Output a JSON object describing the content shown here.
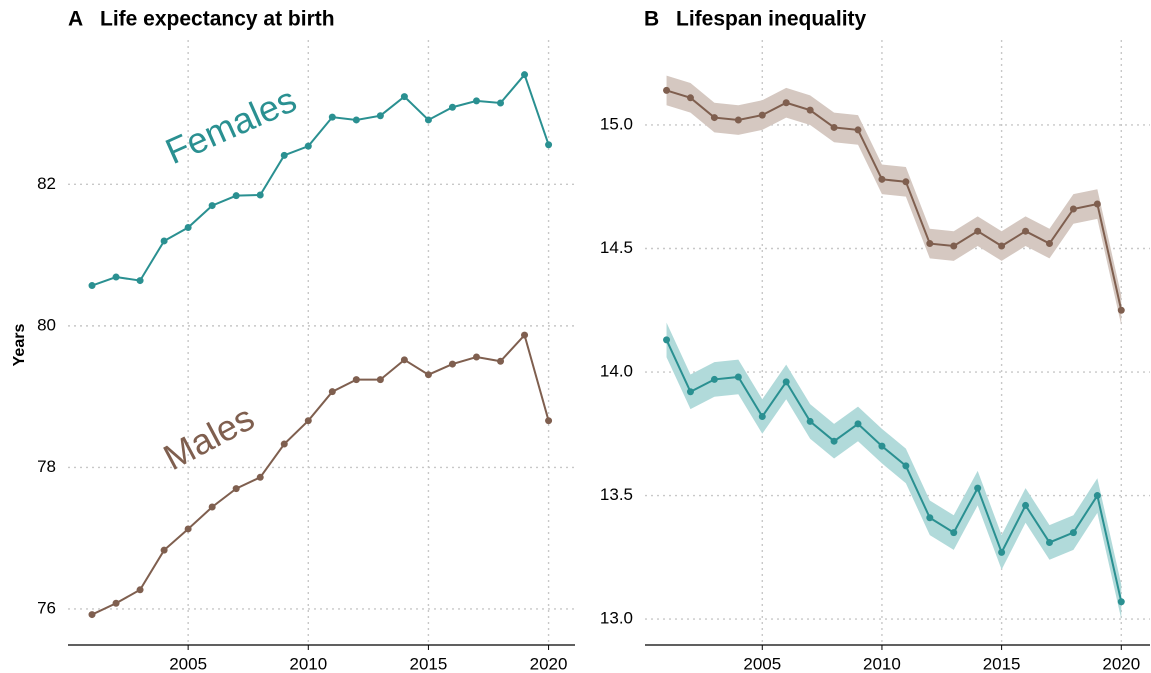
{
  "chart_data": [
    {
      "type": "line",
      "tag": "A",
      "title": "Life expectancy at birth",
      "y_label": "Years",
      "x": [
        2001,
        2002,
        2003,
        2004,
        2005,
        2006,
        2007,
        2008,
        2009,
        2010,
        2011,
        2012,
        2013,
        2014,
        2015,
        2016,
        2017,
        2018,
        2019,
        2020
      ],
      "series": [
        {
          "name": "Females",
          "color": "#2a9091",
          "band_color": "#b1dada",
          "values": [
            80.57,
            80.69,
            80.64,
            81.2,
            81.39,
            81.7,
            81.84,
            81.85,
            82.41,
            82.54,
            82.95,
            82.91,
            82.97,
            83.24,
            82.91,
            83.09,
            83.18,
            83.15,
            83.55,
            82.56
          ]
        },
        {
          "name": "Males",
          "color": "#7f5f4f",
          "band_color": "#d5c8c1",
          "values": [
            75.92,
            76.08,
            76.27,
            76.83,
            77.13,
            77.44,
            77.7,
            77.86,
            78.33,
            78.66,
            79.07,
            79.24,
            79.24,
            79.52,
            79.31,
            79.46,
            79.56,
            79.5,
            79.87,
            78.66
          ]
        }
      ],
      "xlim": [
        2000,
        2021.1
      ],
      "xticks": [
        2005,
        2010,
        2015,
        2020
      ],
      "ylim": [
        75.49,
        84.04
      ],
      "yticks": [
        76,
        78,
        80,
        82
      ],
      "grid": true
    },
    {
      "type": "line",
      "tag": "B",
      "title": "Lifespan inequality",
      "x": [
        2001,
        2002,
        2003,
        2004,
        2005,
        2006,
        2007,
        2008,
        2009,
        2010,
        2011,
        2012,
        2013,
        2014,
        2015,
        2016,
        2017,
        2018,
        2019,
        2020
      ],
      "series": [
        {
          "color": "#7f5f4f",
          "band_color": "#d5c8c1",
          "values": [
            15.14,
            15.11,
            15.03,
            15.02,
            15.04,
            15.09,
            15.06,
            14.99,
            14.98,
            14.78,
            14.77,
            14.52,
            14.51,
            14.57,
            14.51,
            14.57,
            14.52,
            14.66,
            14.68,
            14.25
          ],
          "lower": [
            15.08,
            15.05,
            14.97,
            14.96,
            14.98,
            15.03,
            15.0,
            14.93,
            14.92,
            14.72,
            14.71,
            14.46,
            14.45,
            14.51,
            14.45,
            14.51,
            14.46,
            14.6,
            14.62,
            14.19
          ],
          "upper": [
            15.2,
            15.17,
            15.09,
            15.08,
            15.1,
            15.15,
            15.12,
            15.05,
            15.04,
            14.84,
            14.83,
            14.58,
            14.57,
            14.63,
            14.57,
            14.63,
            14.58,
            14.72,
            14.74,
            14.31
          ]
        },
        {
          "color": "#2a9091",
          "band_color": "#b1dada",
          "values": [
            14.13,
            13.92,
            13.97,
            13.98,
            13.82,
            13.96,
            13.8,
            13.72,
            13.79,
            13.7,
            13.62,
            13.41,
            13.35,
            13.53,
            13.27,
            13.46,
            13.31,
            13.35,
            13.5,
            13.07
          ],
          "lower": [
            14.06,
            13.85,
            13.9,
            13.91,
            13.75,
            13.89,
            13.73,
            13.65,
            13.72,
            13.63,
            13.55,
            13.34,
            13.28,
            13.46,
            13.2,
            13.39,
            13.24,
            13.28,
            13.43,
            13.0
          ],
          "upper": [
            14.2,
            13.99,
            14.04,
            14.05,
            13.89,
            14.03,
            13.87,
            13.79,
            13.86,
            13.77,
            13.69,
            13.48,
            13.42,
            13.6,
            13.34,
            13.53,
            13.38,
            13.42,
            13.57,
            13.14
          ]
        }
      ],
      "xlim": [
        2000.1,
        2021.2
      ],
      "xticks": [
        2005,
        2010,
        2015,
        2020
      ],
      "ylim": [
        12.895,
        15.344
      ],
      "yticks": [
        {
          "value": 13,
          "label": "13.0"
        },
        13.5,
        {
          "value": 14,
          "label": "14.0"
        },
        14.5,
        {
          "value": 15,
          "label": "15.0"
        }
      ],
      "grid": true
    }
  ]
}
